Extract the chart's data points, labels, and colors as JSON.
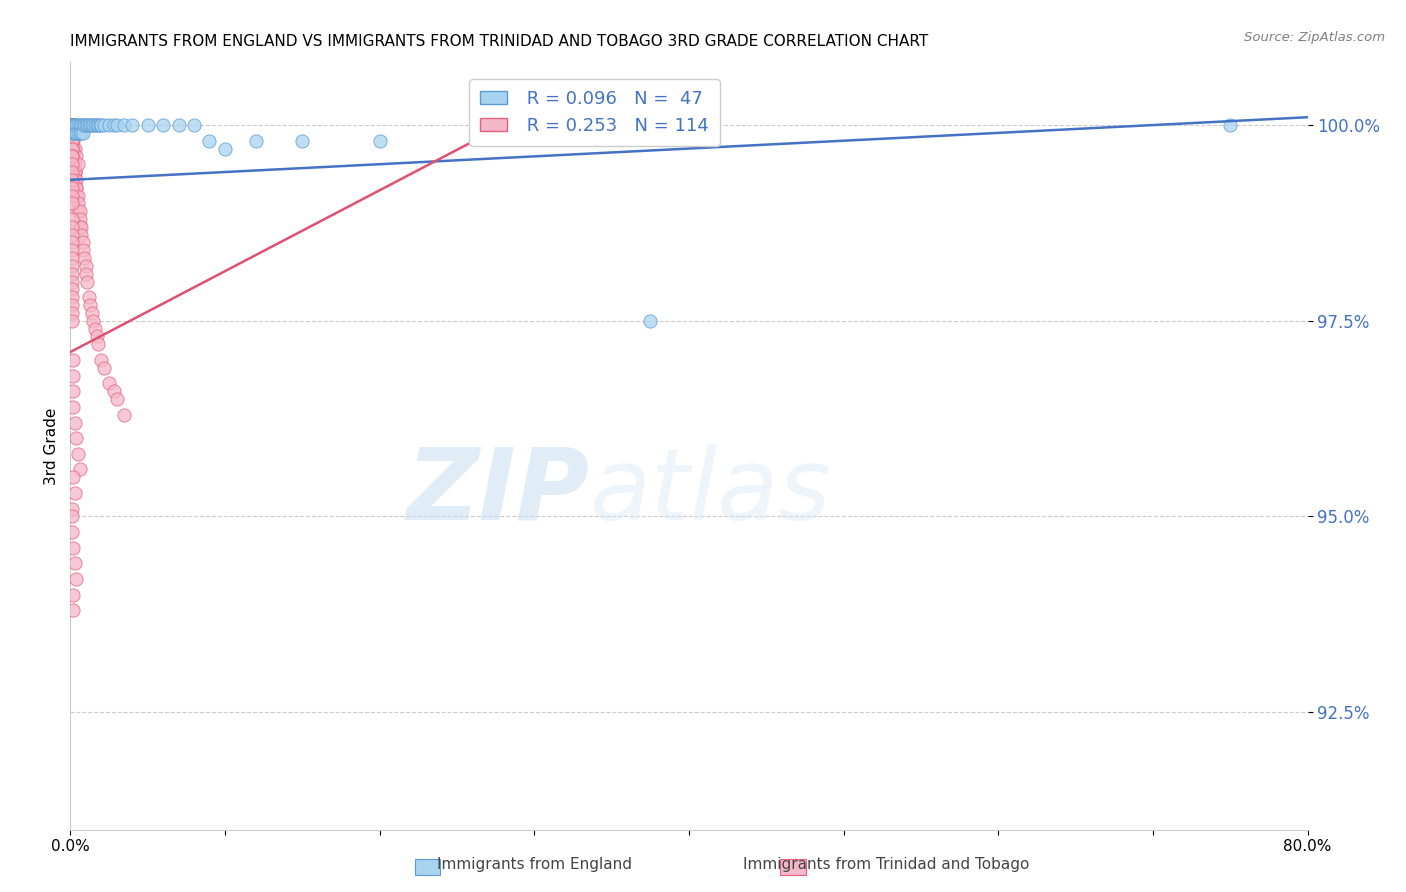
{
  "title": "IMMIGRANTS FROM ENGLAND VS IMMIGRANTS FROM TRINIDAD AND TOBAGO 3RD GRADE CORRELATION CHART",
  "source": "Source: ZipAtlas.com",
  "xlabel_england": "Immigrants from England",
  "xlabel_tt": "Immigrants from Trinidad and Tobago",
  "ylabel": "3rd Grade",
  "xlim": [
    0.0,
    0.8
  ],
  "ylim": [
    0.91,
    1.008
  ],
  "xticks": [
    0.0,
    0.1,
    0.2,
    0.3,
    0.4,
    0.5,
    0.6,
    0.7,
    0.8
  ],
  "xtick_labels": [
    "0.0%",
    "",
    "",
    "",
    "",
    "",
    "",
    "",
    "80.0%"
  ],
  "yticks": [
    0.925,
    0.95,
    0.975,
    1.0
  ],
  "ytick_labels": [
    "92.5%",
    "95.0%",
    "97.5%",
    "100.0%"
  ],
  "england_R": 0.096,
  "england_N": 47,
  "tt_R": 0.253,
  "tt_N": 114,
  "england_color": "#a8d4f0",
  "tt_color": "#f5b8cb",
  "england_edge_color": "#5b9bd5",
  "tt_edge_color": "#e8607a",
  "england_line_color": "#4472c4",
  "tt_line_color": "#e05070",
  "legend_text_color": "#4472c4",
  "england_x": [
    0.001,
    0.001,
    0.001,
    0.002,
    0.002,
    0.002,
    0.003,
    0.003,
    0.004,
    0.004,
    0.005,
    0.005,
    0.006,
    0.006,
    0.007,
    0.007,
    0.008,
    0.008,
    0.009,
    0.01,
    0.011,
    0.012,
    0.013,
    0.014,
    0.015,
    0.016,
    0.017,
    0.018,
    0.019,
    0.02,
    0.022,
    0.025,
    0.028,
    0.03,
    0.035,
    0.04,
    0.05,
    0.06,
    0.07,
    0.08,
    0.09,
    0.1,
    0.12,
    0.15,
    0.2,
    0.375,
    0.75
  ],
  "england_y": [
    1.0,
    1.0,
    0.999,
    1.0,
    0.999,
    1.0,
    1.0,
    0.999,
    1.0,
    0.999,
    1.0,
    0.999,
    1.0,
    0.999,
    1.0,
    0.999,
    1.0,
    0.999,
    1.0,
    1.0,
    1.0,
    1.0,
    1.0,
    1.0,
    1.0,
    1.0,
    1.0,
    1.0,
    1.0,
    1.0,
    1.0,
    1.0,
    1.0,
    1.0,
    1.0,
    1.0,
    1.0,
    1.0,
    1.0,
    1.0,
    0.998,
    0.997,
    0.998,
    0.998,
    0.998,
    0.975,
    1.0
  ],
  "tt_x": [
    0.001,
    0.001,
    0.001,
    0.001,
    0.001,
    0.001,
    0.001,
    0.001,
    0.001,
    0.001,
    0.001,
    0.001,
    0.001,
    0.001,
    0.001,
    0.001,
    0.001,
    0.001,
    0.001,
    0.001,
    0.002,
    0.002,
    0.002,
    0.002,
    0.002,
    0.002,
    0.002,
    0.002,
    0.003,
    0.003,
    0.003,
    0.003,
    0.003,
    0.004,
    0.004,
    0.004,
    0.004,
    0.005,
    0.005,
    0.005,
    0.006,
    0.006,
    0.006,
    0.007,
    0.007,
    0.008,
    0.008,
    0.009,
    0.01,
    0.01,
    0.011,
    0.012,
    0.013,
    0.014,
    0.015,
    0.016,
    0.017,
    0.018,
    0.02,
    0.022,
    0.025,
    0.028,
    0.03,
    0.035,
    0.002,
    0.003,
    0.004,
    0.005,
    0.001,
    0.001,
    0.001,
    0.001,
    0.001,
    0.001,
    0.001,
    0.001,
    0.001,
    0.001,
    0.001,
    0.001,
    0.001,
    0.001,
    0.001,
    0.001,
    0.001,
    0.001,
    0.001,
    0.001,
    0.001,
    0.001,
    0.001,
    0.001,
    0.001,
    0.001,
    0.001,
    0.001,
    0.002,
    0.002,
    0.002,
    0.002,
    0.003,
    0.004,
    0.005,
    0.006,
    0.002,
    0.003,
    0.001,
    0.001,
    0.001,
    0.002,
    0.003,
    0.004,
    0.002,
    0.002
  ],
  "tt_y": [
    1.0,
    1.0,
    1.0,
    1.0,
    1.0,
    1.0,
    1.0,
    1.0,
    0.999,
    0.999,
    0.999,
    0.999,
    0.999,
    0.999,
    0.998,
    0.998,
    0.998,
    0.998,
    0.997,
    0.997,
    0.997,
    0.997,
    0.997,
    0.996,
    0.996,
    0.996,
    0.995,
    0.995,
    0.995,
    0.994,
    0.994,
    0.994,
    0.993,
    0.993,
    0.992,
    0.992,
    0.991,
    0.991,
    0.99,
    0.989,
    0.989,
    0.988,
    0.987,
    0.987,
    0.986,
    0.985,
    0.984,
    0.983,
    0.982,
    0.981,
    0.98,
    0.978,
    0.977,
    0.976,
    0.975,
    0.974,
    0.973,
    0.972,
    0.97,
    0.969,
    0.967,
    0.966,
    0.965,
    0.963,
    0.998,
    0.997,
    0.996,
    0.995,
    0.999,
    0.999,
    0.998,
    0.998,
    0.997,
    0.997,
    0.996,
    0.996,
    0.995,
    0.994,
    0.993,
    0.992,
    0.991,
    0.99,
    0.988,
    0.987,
    0.986,
    0.985,
    0.984,
    0.983,
    0.982,
    0.981,
    0.98,
    0.979,
    0.978,
    0.977,
    0.976,
    0.975,
    0.97,
    0.968,
    0.966,
    0.964,
    0.962,
    0.96,
    0.958,
    0.956,
    0.955,
    0.953,
    0.951,
    0.95,
    0.948,
    0.946,
    0.944,
    0.942,
    0.94,
    0.938
  ],
  "watermark_zip": "ZIP",
  "watermark_atlas": "atlas",
  "background_color": "#ffffff",
  "grid_color": "#cccccc",
  "eng_trend_x0": 0.0,
  "eng_trend_x1": 0.8,
  "eng_trend_y0": 0.993,
  "eng_trend_y1": 1.001,
  "tt_trend_x0": 0.0,
  "tt_trend_x1": 0.3,
  "tt_trend_y0": 0.971,
  "tt_trend_y1": 1.002
}
